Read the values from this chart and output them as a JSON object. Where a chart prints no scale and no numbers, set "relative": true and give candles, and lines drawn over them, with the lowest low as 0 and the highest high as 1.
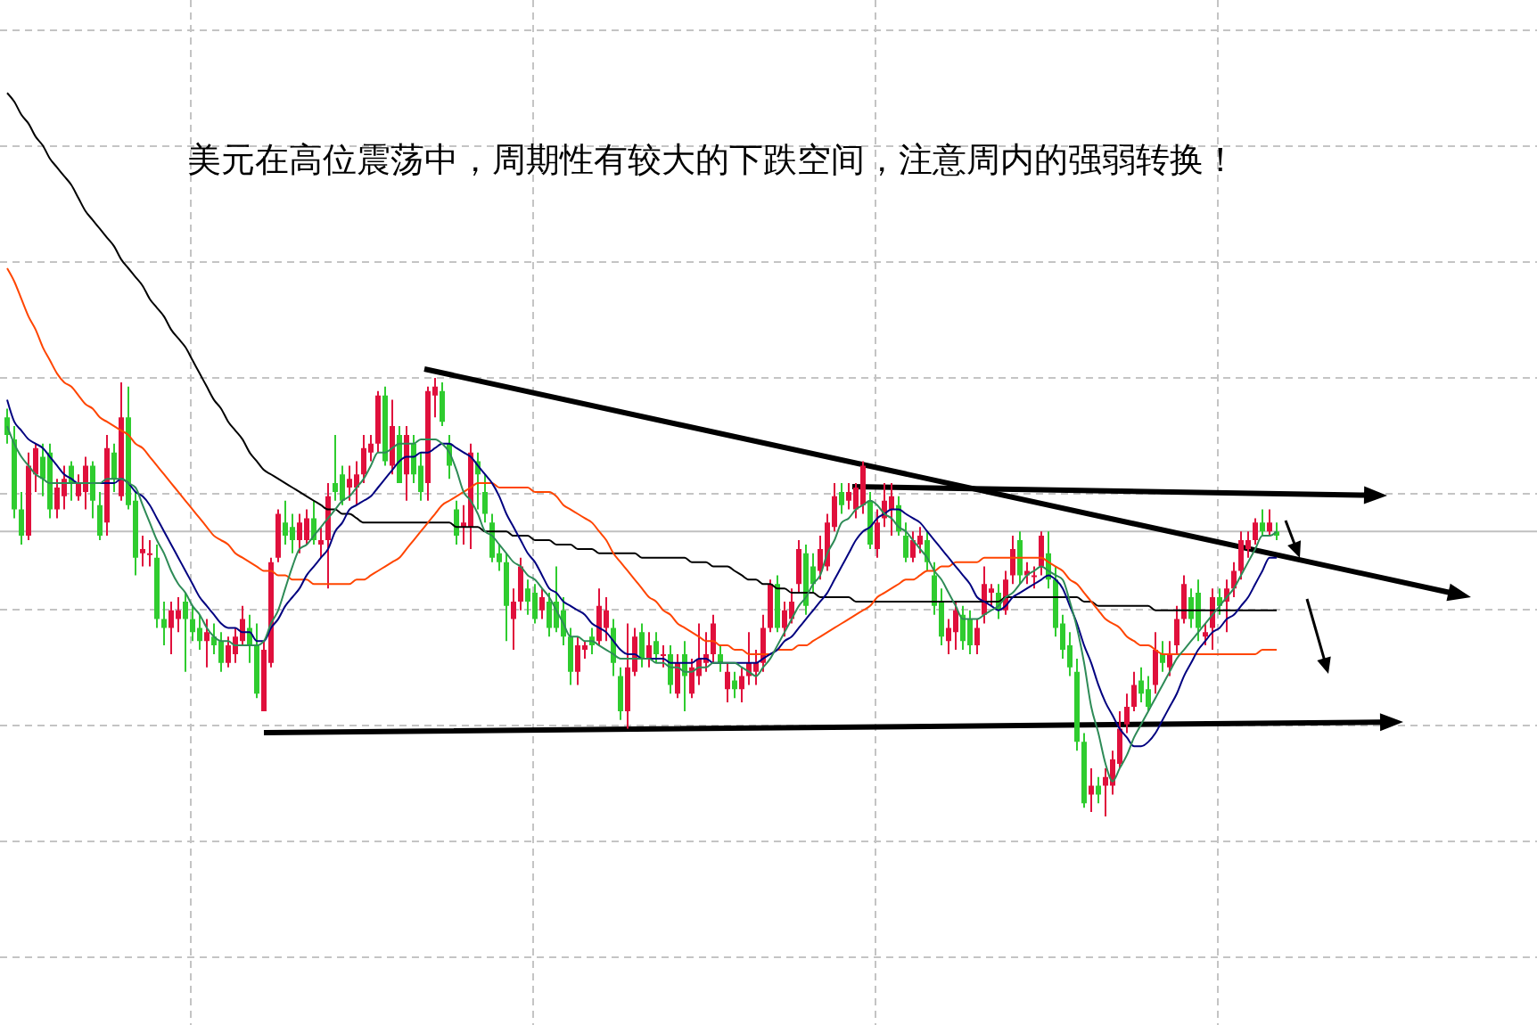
{
  "chart_data": {
    "type": "candlestick",
    "title": "美元在高位震荡中，周期性有较大的下跌空间，注意周内的强弱转换！",
    "relative": true,
    "grid": true,
    "categories": [
      null,
      null,
      null,
      null,
      null,
      null,
      null,
      null,
      null,
      null,
      null,
      null,
      null,
      null,
      null,
      null,
      null,
      null,
      null,
      null,
      null,
      null,
      null,
      null,
      null,
      null,
      null,
      null,
      null,
      null,
      null,
      null,
      null,
      null,
      null,
      null,
      null,
      null,
      null,
      null,
      null,
      null,
      null,
      null,
      null,
      null,
      null,
      null,
      null,
      null,
      null,
      null,
      null,
      null,
      null,
      null,
      null,
      null,
      null,
      null,
      null,
      null,
      null,
      null,
      null,
      null,
      null,
      null,
      null,
      null,
      null,
      null,
      null,
      null,
      null,
      null,
      null,
      null,
      null,
      null,
      null,
      null,
      null,
      null,
      null,
      null,
      null,
      null,
      null,
      null,
      null,
      null,
      null,
      null,
      null,
      null,
      null,
      null,
      null,
      null,
      null,
      null,
      null,
      null,
      null,
      null,
      null,
      null,
      null,
      null,
      null,
      null,
      null,
      null,
      null,
      null,
      null,
      null,
      null,
      null,
      null,
      null,
      null,
      null,
      null,
      null,
      null,
      null,
      null,
      null,
      null,
      null,
      null,
      null,
      null,
      null,
      null,
      null,
      null,
      null,
      null,
      null,
      null,
      null,
      null,
      null,
      null,
      null,
      null,
      null,
      null,
      null,
      null,
      null,
      null,
      null,
      null,
      null,
      null,
      null,
      null,
      null,
      null,
      null,
      null,
      null,
      null,
      null,
      null,
      null,
      null,
      null,
      null,
      null,
      null,
      null,
      null,
      null,
      null
    ],
    "ref_lines": [
      {
        "axis": "y",
        "value": 0.65,
        "color": "#c0c0c0"
      }
    ],
    "ohlc": [
      [
        0.91,
        0.93,
        0.85,
        0.87
      ],
      [
        0.86,
        0.89,
        0.68,
        0.7
      ],
      [
        0.7,
        0.74,
        0.62,
        0.64
      ],
      [
        0.64,
        0.83,
        0.63,
        0.8
      ],
      [
        0.78,
        0.85,
        0.74,
        0.84
      ],
      [
        0.82,
        0.85,
        0.73,
        0.77
      ],
      [
        0.83,
        0.85,
        0.68,
        0.7
      ],
      [
        0.7,
        0.77,
        0.68,
        0.75
      ],
      [
        0.73,
        0.8,
        0.7,
        0.77
      ],
      [
        0.8,
        0.81,
        0.72,
        0.76
      ],
      [
        0.73,
        0.78,
        0.72,
        0.76
      ],
      [
        0.74,
        0.82,
        0.7,
        0.8
      ],
      [
        0.8,
        0.81,
        0.68,
        0.72
      ],
      [
        0.71,
        0.74,
        0.63,
        0.64
      ],
      [
        0.67,
        0.87,
        0.64,
        0.84
      ],
      [
        0.83,
        0.85,
        0.74,
        0.77
      ],
      [
        0.73,
        0.99,
        0.72,
        0.91
      ],
      [
        0.91,
        0.98,
        0.7,
        0.71
      ],
      [
        0.72,
        0.74,
        0.55,
        0.59
      ],
      [
        0.6,
        0.64,
        0.57,
        0.61
      ],
      [
        0.6,
        0.63,
        0.57,
        0.6
      ],
      [
        0.59,
        0.62,
        0.43,
        0.45
      ],
      [
        0.45,
        0.49,
        0.39,
        0.43
      ],
      [
        0.43,
        0.49,
        0.37,
        0.47
      ],
      [
        0.45,
        0.5,
        0.42,
        0.47
      ],
      [
        0.49,
        0.51,
        0.33,
        0.45
      ],
      [
        0.45,
        0.48,
        0.4,
        0.42
      ],
      [
        0.43,
        0.46,
        0.38,
        0.4
      ],
      [
        0.4,
        0.45,
        0.34,
        0.42
      ],
      [
        0.41,
        0.44,
        0.37,
        0.39
      ],
      [
        0.4,
        0.42,
        0.33,
        0.35
      ],
      [
        0.35,
        0.41,
        0.34,
        0.39
      ],
      [
        0.37,
        0.43,
        0.35,
        0.41
      ],
      [
        0.4,
        0.48,
        0.39,
        0.45
      ],
      [
        0.43,
        0.46,
        0.35,
        0.39
      ],
      [
        0.39,
        0.44,
        0.27,
        0.28
      ],
      [
        0.24,
        0.4,
        0.24,
        0.38
      ],
      [
        0.35,
        0.59,
        0.34,
        0.58
      ],
      [
        0.59,
        0.7,
        0.58,
        0.69
      ],
      [
        0.67,
        0.72,
        0.62,
        0.64
      ],
      [
        0.66,
        0.69,
        0.6,
        0.63
      ],
      [
        0.63,
        0.69,
        0.6,
        0.67
      ],
      [
        0.63,
        0.7,
        0.62,
        0.68
      ],
      [
        0.68,
        0.72,
        0.62,
        0.63
      ],
      [
        0.62,
        0.66,
        0.59,
        0.63
      ],
      [
        0.63,
        0.76,
        0.52,
        0.73
      ],
      [
        0.76,
        0.87,
        0.72,
        0.74
      ],
      [
        0.78,
        0.8,
        0.71,
        0.72
      ],
      [
        0.75,
        0.8,
        0.72,
        0.77
      ],
      [
        0.75,
        0.81,
        0.71,
        0.78
      ],
      [
        0.78,
        0.87,
        0.76,
        0.84
      ],
      [
        0.83,
        0.87,
        0.81,
        0.85
      ],
      [
        0.85,
        0.97,
        0.83,
        0.96
      ],
      [
        0.96,
        0.98,
        0.8,
        0.81
      ],
      [
        0.8,
        0.95,
        0.78,
        0.89
      ],
      [
        0.87,
        0.89,
        0.76,
        0.76
      ],
      [
        0.78,
        0.89,
        0.72,
        0.87
      ],
      [
        0.85,
        0.87,
        0.76,
        0.78
      ],
      [
        0.8,
        0.83,
        0.72,
        0.74
      ],
      [
        0.76,
        0.98,
        0.72,
        0.97
      ],
      [
        0.96,
        1,
        0.91,
        0.98
      ],
      [
        0.97,
        0.99,
        0.89,
        0.9
      ],
      [
        0.85,
        0.87,
        0.77,
        0.8
      ],
      [
        0.7,
        0.72,
        0.62,
        0.64
      ],
      [
        0.66,
        0.71,
        0.62,
        0.67
      ],
      [
        0.66,
        0.85,
        0.61,
        0.83
      ],
      [
        0.81,
        0.83,
        0.7,
        0.78
      ],
      [
        0.74,
        0.78,
        0.67,
        0.69
      ],
      [
        0.67,
        0.69,
        0.58,
        0.59
      ],
      [
        0.6,
        0.62,
        0.56,
        0.58
      ],
      [
        0.58,
        0.6,
        0.4,
        0.48
      ],
      [
        0.45,
        0.52,
        0.38,
        0.49
      ],
      [
        0.49,
        0.59,
        0.47,
        0.57
      ],
      [
        0.52,
        0.54,
        0.46,
        0.49
      ],
      [
        0.51,
        0.53,
        0.44,
        0.45
      ],
      [
        0.47,
        0.52,
        0.45,
        0.5
      ],
      [
        0.49,
        0.51,
        0.41,
        0.43
      ],
      [
        0.49,
        0.57,
        0.42,
        0.43
      ],
      [
        0.47,
        0.5,
        0.39,
        0.41
      ],
      [
        0.41,
        0.43,
        0.3,
        0.33
      ],
      [
        0.33,
        0.41,
        0.3,
        0.39
      ],
      [
        0.38,
        0.4,
        0.36,
        0.39
      ],
      [
        0.41,
        0.43,
        0.37,
        0.39
      ],
      [
        0.4,
        0.52,
        0.39,
        0.48
      ],
      [
        0.43,
        0.5,
        0.4,
        0.47
      ],
      [
        0.43,
        0.45,
        0.32,
        0.35
      ],
      [
        0.32,
        0.34,
        0.22,
        0.24
      ],
      [
        0.24,
        0.44,
        0.2,
        0.34
      ],
      [
        0.33,
        0.43,
        0.32,
        0.41
      ],
      [
        0.42,
        0.44,
        0.34,
        0.36
      ],
      [
        0.36,
        0.42,
        0.34,
        0.39
      ],
      [
        0.4,
        0.42,
        0.35,
        0.37
      ],
      [
        0.37,
        0.39,
        0.34,
        0.37
      ],
      [
        0.37,
        0.39,
        0.28,
        0.3
      ],
      [
        0.28,
        0.37,
        0.27,
        0.35
      ],
      [
        0.37,
        0.4,
        0.24,
        0.32
      ],
      [
        0.28,
        0.36,
        0.27,
        0.34
      ],
      [
        0.32,
        0.44,
        0.3,
        0.36
      ],
      [
        0.35,
        0.42,
        0.33,
        0.37
      ],
      [
        0.37,
        0.46,
        0.35,
        0.44
      ],
      [
        0.37,
        0.39,
        0.33,
        0.35
      ],
      [
        0.29,
        0.35,
        0.26,
        0.33
      ],
      [
        0.31,
        0.33,
        0.27,
        0.29
      ],
      [
        0.29,
        0.34,
        0.26,
        0.32
      ],
      [
        0.32,
        0.42,
        0.3,
        0.35
      ],
      [
        0.33,
        0.38,
        0.3,
        0.35
      ],
      [
        0.35,
        0.46,
        0.33,
        0.43
      ],
      [
        0.43,
        0.54,
        0.42,
        0.53
      ],
      [
        0.53,
        0.55,
        0.42,
        0.43
      ],
      [
        0.43,
        0.49,
        0.41,
        0.47
      ],
      [
        0.45,
        0.52,
        0.44,
        0.49
      ],
      [
        0.53,
        0.63,
        0.51,
        0.61
      ],
      [
        0.6,
        0.62,
        0.46,
        0.48
      ],
      [
        0.57,
        0.6,
        0.51,
        0.53
      ],
      [
        0.56,
        0.64,
        0.54,
        0.61
      ],
      [
        0.57,
        0.69,
        0.56,
        0.67
      ],
      [
        0.66,
        0.76,
        0.65,
        0.73
      ],
      [
        0.74,
        0.76,
        0.69,
        0.71
      ],
      [
        0.72,
        0.76,
        0.7,
        0.74
      ],
      [
        0.7,
        0.76,
        0.68,
        0.75
      ],
      [
        0.71,
        0.81,
        0.69,
        0.8
      ],
      [
        0.72,
        0.74,
        0.61,
        0.62
      ],
      [
        0.61,
        0.7,
        0.59,
        0.67
      ],
      [
        0.68,
        0.76,
        0.66,
        0.72
      ],
      [
        0.7,
        0.76,
        0.64,
        0.73
      ],
      [
        0.71,
        0.73,
        0.64,
        0.65
      ],
      [
        0.64,
        0.67,
        0.58,
        0.59
      ],
      [
        0.59,
        0.65,
        0.58,
        0.63
      ],
      [
        0.62,
        0.66,
        0.6,
        0.64
      ],
      [
        0.63,
        0.65,
        0.56,
        0.58
      ],
      [
        0.55,
        0.58,
        0.46,
        0.48
      ],
      [
        0.49,
        0.52,
        0.39,
        0.41
      ],
      [
        0.4,
        0.45,
        0.37,
        0.43
      ],
      [
        0.42,
        0.49,
        0.38,
        0.47
      ],
      [
        0.46,
        0.48,
        0.38,
        0.4
      ],
      [
        0.45,
        0.47,
        0.37,
        0.39
      ],
      [
        0.39,
        0.45,
        0.37,
        0.43
      ],
      [
        0.46,
        0.57,
        0.44,
        0.53
      ],
      [
        0.51,
        0.53,
        0.48,
        0.52
      ],
      [
        0.51,
        0.53,
        0.45,
        0.47
      ],
      [
        0.47,
        0.56,
        0.46,
        0.54
      ],
      [
        0.55,
        0.64,
        0.53,
        0.61
      ],
      [
        0.63,
        0.65,
        0.53,
        0.55
      ],
      [
        0.55,
        0.58,
        0.53,
        0.56
      ],
      [
        0.55,
        0.57,
        0.52,
        0.55
      ],
      [
        0.57,
        0.65,
        0.55,
        0.64
      ],
      [
        0.6,
        0.65,
        0.52,
        0.54
      ],
      [
        0.54,
        0.57,
        0.41,
        0.43
      ],
      [
        0.44,
        0.46,
        0.36,
        0.38
      ],
      [
        0.39,
        0.42,
        0.32,
        0.34
      ],
      [
        0.33,
        0.36,
        0.15,
        0.17
      ],
      [
        0.17,
        0.19,
        0.02,
        0.03
      ],
      [
        0.05,
        0.11,
        0.01,
        0.07
      ],
      [
        0.07,
        0.09,
        0.03,
        0.05
      ],
      [
        0.07,
        0.11,
        0,
        0.09
      ],
      [
        0.07,
        0.15,
        0.05,
        0.13
      ],
      [
        0.12,
        0.24,
        0.11,
        0.2
      ],
      [
        0.21,
        0.28,
        0.19,
        0.25
      ],
      [
        0.25,
        0.33,
        0.24,
        0.3
      ],
      [
        0.31,
        0.34,
        0.26,
        0.28
      ],
      [
        0.29,
        0.32,
        0.24,
        0.25
      ],
      [
        0.3,
        0.42,
        0.28,
        0.38
      ],
      [
        0.37,
        0.4,
        0.33,
        0.35
      ],
      [
        0.34,
        0.4,
        0.32,
        0.37
      ],
      [
        0.39,
        0.48,
        0.37,
        0.45
      ],
      [
        0.45,
        0.55,
        0.44,
        0.53
      ],
      [
        0.5,
        0.52,
        0.43,
        0.45
      ],
      [
        0.51,
        0.54,
        0.4,
        0.43
      ],
      [
        0.41,
        0.44,
        0.39,
        0.42
      ],
      [
        0.43,
        0.52,
        0.38,
        0.5
      ],
      [
        0.5,
        0.52,
        0.46,
        0.48
      ],
      [
        0.49,
        0.54,
        0.42,
        0.52
      ],
      [
        0.52,
        0.58,
        0.5,
        0.56
      ],
      [
        0.56,
        0.65,
        0.54,
        0.63
      ],
      [
        0.61,
        0.65,
        0.59,
        0.63
      ],
      [
        0.63,
        0.68,
        0.62,
        0.67
      ],
      [
        0.67,
        0.7,
        0.64,
        0.65
      ],
      [
        0.65,
        0.7,
        0.64,
        0.67
      ],
      [
        0.65,
        0.67,
        0.63,
        0.64
      ]
    ],
    "colors": [
      "#2fcc2f",
      "#2fcc2f",
      "#2fcc2f",
      "#e0103c",
      "#e0103c",
      "#2fcc2f",
      "#2fcc2f",
      "#e0103c",
      "#e0103c",
      "#2fcc2f",
      "#e0103c",
      "#e0103c",
      "#2fcc2f",
      "#2fcc2f",
      "#e0103c",
      "#2fcc2f",
      "#e0103c",
      "#2fcc2f",
      "#2fcc2f",
      "#e0103c",
      "#e0103c",
      "#2fcc2f",
      "#2fcc2f",
      "#e0103c",
      "#e0103c",
      "#2fcc2f",
      "#2fcc2f",
      "#2fcc2f",
      "#e0103c",
      "#2fcc2f",
      "#2fcc2f",
      "#e0103c",
      "#e0103c",
      "#e0103c",
      "#2fcc2f",
      "#2fcc2f",
      "#e0103c",
      "#e0103c",
      "#e0103c",
      "#2fcc2f",
      "#2fcc2f",
      "#e0103c",
      "#e0103c",
      "#2fcc2f",
      "#e0103c",
      "#e0103c",
      "#2fcc2f",
      "#2fcc2f",
      "#e0103c",
      "#e0103c",
      "#e0103c",
      "#e0103c",
      "#e0103c",
      "#2fcc2f",
      "#e0103c",
      "#2fcc2f",
      "#e0103c",
      "#2fcc2f",
      "#2fcc2f",
      "#e0103c",
      "#e0103c",
      "#2fcc2f",
      "#2fcc2f",
      "#2fcc2f",
      "#e0103c",
      "#e0103c",
      "#2fcc2f",
      "#2fcc2f",
      "#2fcc2f",
      "#2fcc2f",
      "#2fcc2f",
      "#e0103c",
      "#e0103c",
      "#2fcc2f",
      "#2fcc2f",
      "#e0103c",
      "#2fcc2f",
      "#2fcc2f",
      "#2fcc2f",
      "#2fcc2f",
      "#e0103c",
      "#e0103c",
      "#2fcc2f",
      "#e0103c",
      "#e0103c",
      "#2fcc2f",
      "#2fcc2f",
      "#e0103c",
      "#e0103c",
      "#2fcc2f",
      "#e0103c",
      "#2fcc2f",
      "#e0103c",
      "#2fcc2f",
      "#e0103c",
      "#2fcc2f",
      "#e0103c",
      "#e0103c",
      "#e0103c",
      "#e0103c",
      "#2fcc2f",
      "#e0103c",
      "#2fcc2f",
      "#e0103c",
      "#e0103c",
      "#e0103c",
      "#e0103c",
      "#e0103c",
      "#2fcc2f",
      "#e0103c",
      "#e0103c",
      "#e0103c",
      "#2fcc2f",
      "#2fcc2f",
      "#e0103c",
      "#e0103c",
      "#e0103c",
      "#2fcc2f",
      "#e0103c",
      "#e0103c",
      "#e0103c",
      "#2fcc2f",
      "#e0103c",
      "#e0103c",
      "#e0103c",
      "#2fcc2f",
      "#2fcc2f",
      "#e0103c",
      "#e0103c",
      "#2fcc2f",
      "#2fcc2f",
      "#2fcc2f",
      "#e0103c",
      "#e0103c",
      "#2fcc2f",
      "#2fcc2f",
      "#e0103c",
      "#e0103c",
      "#e0103c",
      "#2fcc2f",
      "#e0103c",
      "#e0103c",
      "#2fcc2f",
      "#e0103c",
      "#e0103c",
      "#e0103c",
      "#2fcc2f",
      "#2fcc2f",
      "#2fcc2f",
      "#2fcc2f",
      "#2fcc2f",
      "#2fcc2f",
      "#e0103c",
      "#2fcc2f",
      "#e0103c",
      "#e0103c",
      "#e0103c",
      "#e0103c",
      "#e0103c",
      "#2fcc2f",
      "#2fcc2f",
      "#e0103c",
      "#2fcc2f",
      "#e0103c",
      "#e0103c",
      "#e0103c",
      "#2fcc2f",
      "#2fcc2f",
      "#e0103c",
      "#e0103c",
      "#2fcc2f",
      "#e0103c",
      "#e0103c",
      "#e0103c",
      "#e0103c",
      "#e0103c",
      "#2fcc2f",
      "#e0103c",
      "#2fcc2f"
    ],
    "series": [
      {
        "type": "line",
        "color": "#000000",
        "values": [
          1.65,
          1.63,
          1.6,
          1.58,
          1.55,
          1.53,
          1.5,
          1.48,
          1.46,
          1.44,
          1.41,
          1.38,
          1.36,
          1.34,
          1.32,
          1.3,
          1.27,
          1.25,
          1.23,
          1.21,
          1.18,
          1.16,
          1.14,
          1.11,
          1.09,
          1.07,
          1.04,
          1.01,
          0.98,
          0.95,
          0.93,
          0.9,
          0.88,
          0.86,
          0.83,
          0.81,
          0.79,
          0.78,
          0.77,
          0.76,
          0.75,
          0.74,
          0.73,
          0.72,
          0.71,
          0.7,
          0.7,
          0.69,
          0.69,
          0.68,
          0.67,
          0.67,
          0.67,
          0.67,
          0.67,
          0.67,
          0.67,
          0.67,
          0.67,
          0.67,
          0.67,
          0.67,
          0.67,
          0.66,
          0.66,
          0.66,
          0.66,
          0.65,
          0.65,
          0.65,
          0.65,
          0.64,
          0.64,
          0.64,
          0.63,
          0.63,
          0.63,
          0.62,
          0.62,
          0.62,
          0.61,
          0.61,
          0.61,
          0.6,
          0.6,
          0.6,
          0.6,
          0.6,
          0.6,
          0.59,
          0.59,
          0.59,
          0.59,
          0.59,
          0.59,
          0.59,
          0.58,
          0.58,
          0.58,
          0.57,
          0.57,
          0.57,
          0.56,
          0.55,
          0.54,
          0.54,
          0.53,
          0.53,
          0.52,
          0.52,
          0.51,
          0.51,
          0.51,
          0.51,
          0.5,
          0.5,
          0.5,
          0.5,
          0.5,
          0.49,
          0.49,
          0.49,
          0.49,
          0.49,
          0.49,
          0.49,
          0.49,
          0.49,
          0.49,
          0.49,
          0.49,
          0.49,
          0.49,
          0.49,
          0.49,
          0.49,
          0.49,
          0.49,
          0.49,
          0.49,
          0.5,
          0.5,
          0.5,
          0.5,
          0.5,
          0.5,
          0.5,
          0.5,
          0.5,
          0.5,
          0.5,
          0.49,
          0.49,
          0.48,
          0.48,
          0.48,
          0.48,
          0.48,
          0.48,
          0.48,
          0.48,
          0.47,
          0.47,
          0.47,
          0.47,
          0.47,
          0.47,
          0.47,
          0.47,
          0.47,
          0.47,
          0.47,
          0.47,
          0.47,
          0.47,
          0.47,
          0.47,
          0.47,
          0.47
        ]
      },
      {
        "type": "line",
        "color": "#ff4500",
        "values": [
          1.25,
          1.22,
          1.18,
          1.14,
          1.11,
          1.07,
          1.04,
          1.01,
          0.99,
          0.98,
          0.96,
          0.94,
          0.93,
          0.91,
          0.9,
          0.89,
          0.88,
          0.87,
          0.85,
          0.84,
          0.82,
          0.8,
          0.78,
          0.76,
          0.74,
          0.72,
          0.7,
          0.68,
          0.66,
          0.64,
          0.63,
          0.62,
          0.6,
          0.59,
          0.58,
          0.57,
          0.56,
          0.56,
          0.55,
          0.55,
          0.54,
          0.54,
          0.54,
          0.53,
          0.53,
          0.53,
          0.53,
          0.53,
          0.53,
          0.54,
          0.54,
          0.55,
          0.56,
          0.57,
          0.58,
          0.59,
          0.61,
          0.63,
          0.65,
          0.67,
          0.69,
          0.71,
          0.72,
          0.73,
          0.74,
          0.75,
          0.76,
          0.76,
          0.76,
          0.75,
          0.75,
          0.75,
          0.75,
          0.75,
          0.74,
          0.74,
          0.74,
          0.73,
          0.71,
          0.7,
          0.69,
          0.68,
          0.67,
          0.65,
          0.63,
          0.6,
          0.58,
          0.56,
          0.54,
          0.52,
          0.5,
          0.49,
          0.47,
          0.46,
          0.44,
          0.43,
          0.42,
          0.41,
          0.4,
          0.4,
          0.39,
          0.39,
          0.38,
          0.38,
          0.37,
          0.37,
          0.37,
          0.37,
          0.38,
          0.38,
          0.38,
          0.39,
          0.39,
          0.4,
          0.41,
          0.42,
          0.43,
          0.44,
          0.45,
          0.46,
          0.47,
          0.48,
          0.5,
          0.51,
          0.52,
          0.53,
          0.54,
          0.54,
          0.55,
          0.56,
          0.56,
          0.57,
          0.57,
          0.58,
          0.58,
          0.58,
          0.58,
          0.59,
          0.59,
          0.59,
          0.59,
          0.59,
          0.59,
          0.59,
          0.59,
          0.59,
          0.58,
          0.57,
          0.56,
          0.54,
          0.53,
          0.51,
          0.49,
          0.47,
          0.45,
          0.44,
          0.43,
          0.41,
          0.4,
          0.39,
          0.39,
          0.38,
          0.37,
          0.37,
          0.37,
          0.37,
          0.37,
          0.37,
          0.37,
          0.37,
          0.37,
          0.37,
          0.37,
          0.37,
          0.37,
          0.37,
          0.38,
          0.38,
          0.38
        ]
      },
      {
        "type": "line",
        "color": "#000080",
        "values": [
          0.95,
          0.9,
          0.88,
          0.86,
          0.85,
          0.84,
          0.82,
          0.8,
          0.78,
          0.77,
          0.76,
          0.76,
          0.76,
          0.76,
          0.76,
          0.76,
          0.77,
          0.76,
          0.74,
          0.73,
          0.71,
          0.68,
          0.65,
          0.62,
          0.59,
          0.56,
          0.53,
          0.5,
          0.48,
          0.46,
          0.44,
          0.43,
          0.43,
          0.42,
          0.42,
          0.4,
          0.4,
          0.43,
          0.45,
          0.48,
          0.5,
          0.52,
          0.55,
          0.57,
          0.59,
          0.61,
          0.65,
          0.67,
          0.7,
          0.71,
          0.72,
          0.73,
          0.75,
          0.77,
          0.79,
          0.81,
          0.82,
          0.82,
          0.83,
          0.83,
          0.84,
          0.85,
          0.85,
          0.84,
          0.83,
          0.82,
          0.8,
          0.78,
          0.76,
          0.73,
          0.69,
          0.66,
          0.63,
          0.6,
          0.58,
          0.55,
          0.52,
          0.51,
          0.49,
          0.48,
          0.47,
          0.46,
          0.44,
          0.43,
          0.42,
          0.4,
          0.38,
          0.37,
          0.37,
          0.36,
          0.36,
          0.36,
          0.36,
          0.35,
          0.35,
          0.35,
          0.35,
          0.36,
          0.36,
          0.35,
          0.35,
          0.35,
          0.35,
          0.35,
          0.35,
          0.35,
          0.36,
          0.37,
          0.38,
          0.4,
          0.41,
          0.43,
          0.45,
          0.47,
          0.49,
          0.51,
          0.54,
          0.57,
          0.6,
          0.63,
          0.65,
          0.66,
          0.68,
          0.69,
          0.7,
          0.7,
          0.69,
          0.68,
          0.67,
          0.65,
          0.63,
          0.61,
          0.59,
          0.57,
          0.55,
          0.53,
          0.5,
          0.49,
          0.48,
          0.47,
          0.48,
          0.5,
          0.51,
          0.52,
          0.53,
          0.54,
          0.55,
          0.54,
          0.52,
          0.48,
          0.44,
          0.39,
          0.35,
          0.3,
          0.26,
          0.23,
          0.2,
          0.18,
          0.16,
          0.16,
          0.17,
          0.19,
          0.22,
          0.25,
          0.28,
          0.32,
          0.35,
          0.38,
          0.4,
          0.42,
          0.43,
          0.45,
          0.46,
          0.48,
          0.5,
          0.53,
          0.56,
          0.59,
          0.59
        ]
      },
      {
        "type": "line",
        "color": "#2e8b57",
        "values": [
          0.89,
          0.85,
          0.82,
          0.8,
          0.78,
          0.77,
          0.76,
          0.76,
          0.76,
          0.76,
          0.76,
          0.76,
          0.76,
          0.76,
          0.77,
          0.77,
          0.77,
          0.76,
          0.75,
          0.71,
          0.67,
          0.63,
          0.6,
          0.56,
          0.53,
          0.51,
          0.48,
          0.46,
          0.43,
          0.41,
          0.4,
          0.4,
          0.39,
          0.39,
          0.39,
          0.39,
          0.4,
          0.44,
          0.47,
          0.52,
          0.57,
          0.61,
          0.62,
          0.64,
          0.66,
          0.68,
          0.7,
          0.72,
          0.73,
          0.75,
          0.77,
          0.8,
          0.83,
          0.83,
          0.84,
          0.85,
          0.85,
          0.85,
          0.86,
          0.86,
          0.86,
          0.85,
          0.83,
          0.79,
          0.74,
          0.72,
          0.69,
          0.65,
          0.64,
          0.62,
          0.6,
          0.58,
          0.57,
          0.55,
          0.54,
          0.52,
          0.5,
          0.47,
          0.44,
          0.41,
          0.41,
          0.4,
          0.4,
          0.39,
          0.38,
          0.37,
          0.36,
          0.36,
          0.36,
          0.36,
          0.36,
          0.35,
          0.35,
          0.34,
          0.34,
          0.33,
          0.33,
          0.34,
          0.34,
          0.35,
          0.35,
          0.35,
          0.35,
          0.34,
          0.33,
          0.32,
          0.34,
          0.36,
          0.39,
          0.42,
          0.45,
          0.48,
          0.5,
          0.53,
          0.55,
          0.6,
          0.63,
          0.67,
          0.68,
          0.7,
          0.71,
          0.72,
          0.71,
          0.69,
          0.68,
          0.66,
          0.65,
          0.63,
          0.61,
          0.59,
          0.56,
          0.54,
          0.51,
          0.48,
          0.45,
          0.45,
          0.45,
          0.46,
          0.47,
          0.48,
          0.5,
          0.51,
          0.53,
          0.55,
          0.56,
          0.57,
          0.56,
          0.55,
          0.54,
          0.49,
          0.43,
          0.35,
          0.25,
          0.19,
          0.12,
          0.08,
          0.11,
          0.14,
          0.18,
          0.21,
          0.24,
          0.27,
          0.3,
          0.33,
          0.36,
          0.38,
          0.4,
          0.42,
          0.44,
          0.46,
          0.48,
          0.5,
          0.52,
          0.55,
          0.58,
          0.61,
          0.64,
          0.64,
          0.65
        ]
      }
    ]
  }
}
